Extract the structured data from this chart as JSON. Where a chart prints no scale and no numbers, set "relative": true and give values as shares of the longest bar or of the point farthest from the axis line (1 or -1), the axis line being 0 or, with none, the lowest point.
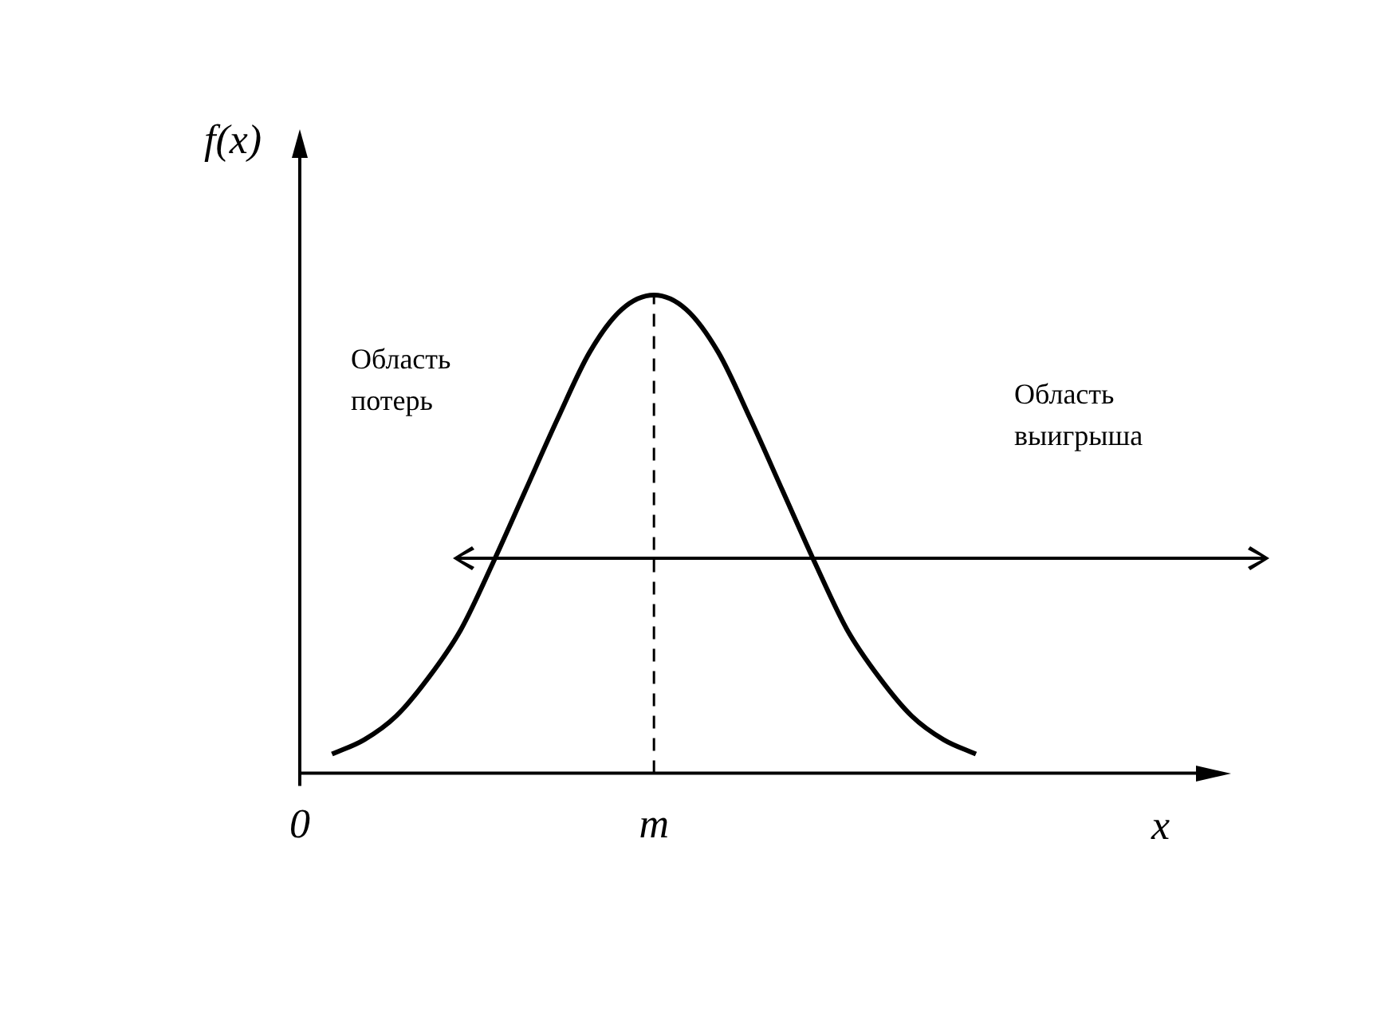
{
  "chart_data": {
    "type": "line",
    "relative": true,
    "color": "#000000",
    "line_style": "solid",
    "ylabel": "f(x)",
    "categories": [
      "0",
      null,
      null,
      null,
      null,
      null,
      null,
      null,
      null,
      null,
      null,
      "m",
      null,
      null,
      null,
      null,
      null,
      null,
      null,
      null,
      null,
      null
    ],
    "values": [
      null,
      0.04,
      0.07,
      0.12,
      0.2,
      0.3,
      0.44,
      0.59,
      0.74,
      0.88,
      0.97,
      1,
      0.97,
      0.88,
      0.74,
      0.59,
      0.44,
      0.3,
      0.2,
      0.12,
      0.07,
      0.04
    ],
    "ref_lines": [
      {
        "axis": "x",
        "value": "m",
        "line_style": "dashed",
        "color": "#000000"
      }
    ],
    "annotations": [
      "Область потерь",
      "Область выигрыша",
      "x"
    ]
  }
}
